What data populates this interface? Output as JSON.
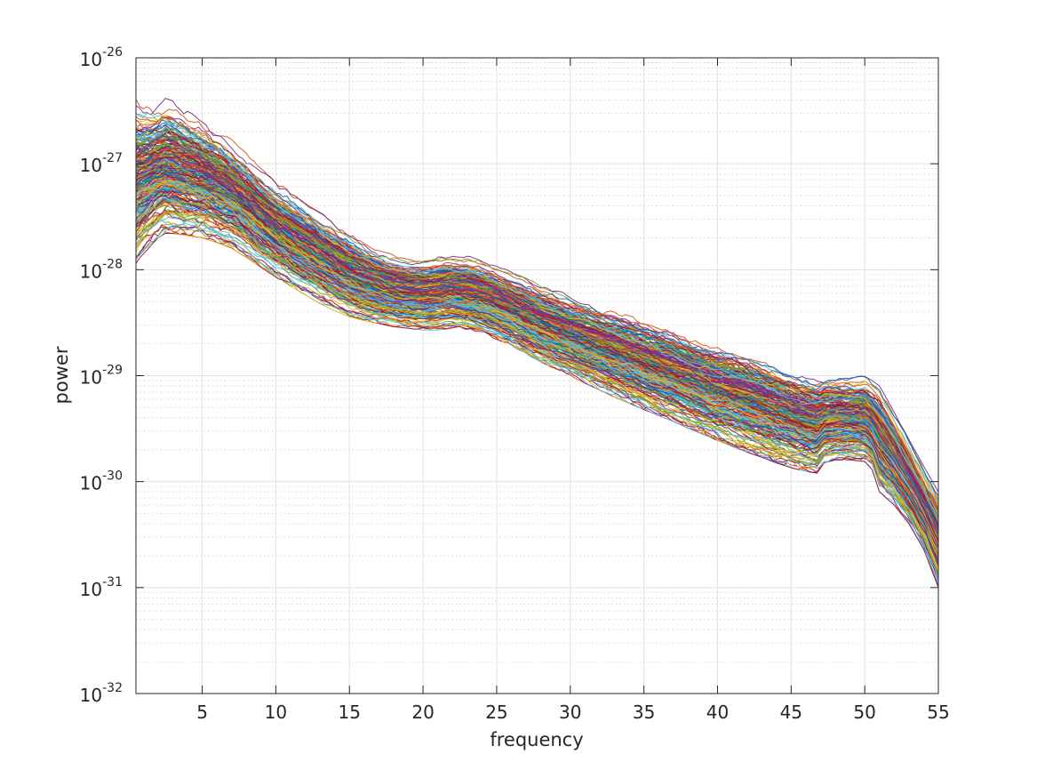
{
  "chart_data": {
    "type": "line",
    "xlabel": "frequency",
    "ylabel": "power",
    "xlim": [
      0.5,
      55
    ],
    "ylim": [
      1e-32,
      1e-26
    ],
    "yscale": "log",
    "grid": "major and minor",
    "legend": "none",
    "x_ticks": [
      5,
      10,
      15,
      20,
      25,
      30,
      35,
      40,
      45,
      50,
      55
    ],
    "x_tick_labels": [
      "5",
      "10",
      "15",
      "20",
      "25",
      "30",
      "35",
      "40",
      "45",
      "50",
      "55"
    ],
    "y_ticks": [
      {
        "value": 1e-32,
        "base": "10",
        "exponent": "-32"
      },
      {
        "value": 1e-31,
        "base": "10",
        "exponent": "-31"
      },
      {
        "value": 1e-30,
        "base": "10",
        "exponent": "-30"
      },
      {
        "value": 1e-29,
        "base": "10",
        "exponent": "-29"
      },
      {
        "value": 1e-28,
        "base": "10",
        "exponent": "-28"
      },
      {
        "value": 1e-27,
        "base": "10",
        "exponent": "-27"
      },
      {
        "value": 1e-26,
        "base": "10",
        "exponent": "-26"
      }
    ],
    "series_count": 273,
    "palette": [
      "#0072bd",
      "#d95319",
      "#edb120",
      "#7e2f8e",
      "#77ac30",
      "#4dbeee",
      "#a2142f"
    ],
    "band_frequencies": [
      0.5,
      1,
      2,
      2.5,
      3,
      4,
      5,
      6,
      7,
      8,
      9,
      10,
      11,
      12,
      13,
      14,
      15,
      16,
      17,
      18,
      19,
      20,
      21,
      22,
      23,
      24,
      25,
      26,
      27,
      28,
      29,
      30,
      31,
      32,
      33,
      34,
      35,
      36,
      37,
      38,
      39,
      40,
      41,
      42,
      43,
      44,
      45,
      46,
      46.8,
      47.2,
      48,
      49,
      50,
      50.5,
      51,
      52,
      53,
      54,
      55
    ],
    "band_lower": [
      1.1e-28,
      1.4e-28,
      2e-28,
      2.2e-28,
      2.2e-28,
      2.1e-28,
      2e-28,
      1.8e-28,
      1.6e-28,
      1.3e-28,
      1.05e-28,
      8.5e-29,
      7e-29,
      5.8e-29,
      4.8e-29,
      4.1e-29,
      3.6e-29,
      3.3e-29,
      3.1e-29,
      2.9e-29,
      2.8e-29,
      2.7e-29,
      2.7e-29,
      2.8e-29,
      2.7e-29,
      2.5e-29,
      2.2e-29,
      1.9e-29,
      1.6e-29,
      1.35e-29,
      1.15e-29,
      1e-29,
      8.5e-30,
      7.3e-30,
      6.3e-30,
      5.5e-30,
      4.8e-30,
      4.2e-30,
      3.7e-30,
      3.2e-30,
      2.8e-30,
      2.45e-30,
      2.15e-30,
      1.9e-30,
      1.7e-30,
      1.5e-30,
      1.35e-30,
      1.25e-30,
      1.2e-30,
      1.5e-30,
      1.6e-30,
      1.6e-30,
      1.55e-30,
      1.3e-30,
      8e-31,
      6e-31,
      4e-31,
      2.3e-31,
      1e-31
    ],
    "band_upper": [
      4.5e-27,
      4e-27,
      4e-27,
      4.3e-27,
      4e-27,
      3.2e-27,
      2.7e-27,
      2.2e-27,
      1.7e-27,
      1.25e-27,
      9e-28,
      6.8e-28,
      5.5e-28,
      4.5e-28,
      3.6e-28,
      2.9e-28,
      2.3e-28,
      1.9e-28,
      1.6e-28,
      1.4e-28,
      1.3e-28,
      1.3e-28,
      1.35e-28,
      1.4e-28,
      1.35e-28,
      1.25e-28,
      1.1e-28,
      9.5e-29,
      8.3e-29,
      7.2e-29,
      6.5e-29,
      5.8e-29,
      5.3e-29,
      4.8e-29,
      4.4e-29,
      4e-29,
      3.6e-29,
      3.2e-29,
      2.9e-29,
      2.6e-29,
      2.3e-29,
      2.1e-29,
      2e-29,
      1.8e-29,
      1.6e-29,
      1.4e-29,
      1.25e-29,
      1.1e-29,
      1e-29,
      1e-29,
      1e-29,
      1e-29,
      1e-29,
      9e-30,
      8e-30,
      4.5e-30,
      2.5e-30,
      1.4e-30,
      8e-31
    ]
  }
}
